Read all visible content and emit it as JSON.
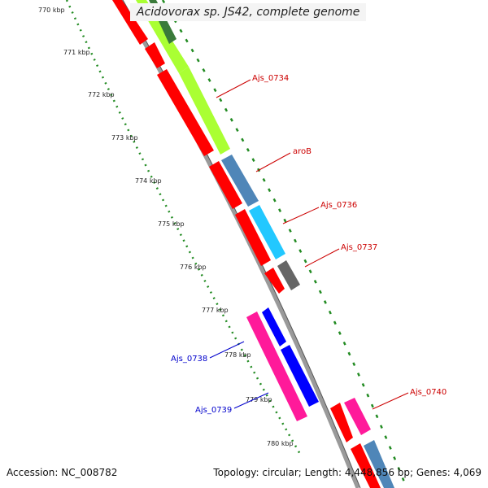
{
  "title": "Acidovorax sp. JS42, complete genome",
  "footer": {
    "accession": "Accession: NC_008782",
    "summary": "Topology: circular; Length: 4,448,856 bp; Genes: 4,069"
  },
  "ticks": [
    "770 kbp",
    "771 kbp",
    "772 kbp",
    "773 kbp",
    "774 kbp",
    "775 kbp",
    "776 kbp",
    "777 kbp",
    "778 kbp",
    "779 kbp",
    "780 kbp"
  ],
  "genes": [
    {
      "name": "Ajs_0734",
      "color": "#cc0000"
    },
    {
      "name": "aroB",
      "color": "#cc0000"
    },
    {
      "name": "Ajs_0736",
      "color": "#cc0000"
    },
    {
      "name": "Ajs_0737",
      "color": "#cc0000"
    },
    {
      "name": "Ajs_0738",
      "color": "#0000cc"
    },
    {
      "name": "Ajs_0739",
      "color": "#0000cc"
    },
    {
      "name": "Ajs_0740",
      "color": "#cc0000"
    }
  ],
  "colors": {
    "red": "#ff0000",
    "lime": "#aaff33",
    "steel": "#4f86b8",
    "cyan": "#22c8ff",
    "gray": "#666666",
    "pink": "#ff1a9a",
    "blue": "#0000ff",
    "dark_green": "#3a7a3a",
    "tick_green": "#228b22",
    "backbone": "#777777"
  }
}
